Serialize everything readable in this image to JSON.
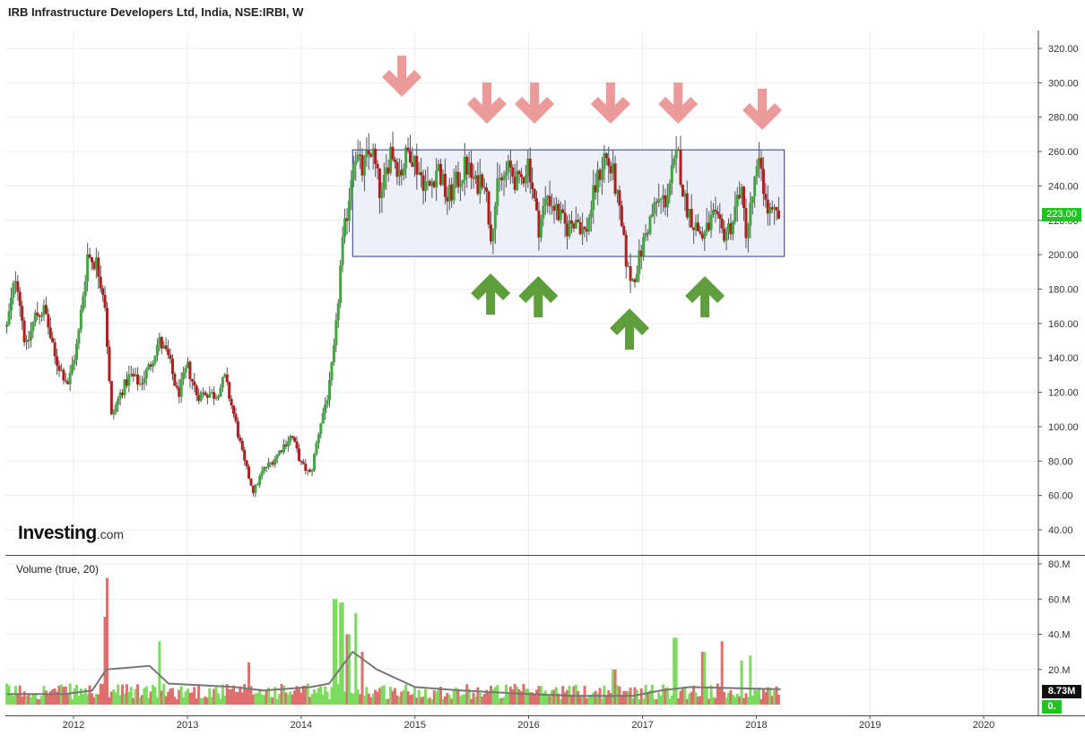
{
  "title": "IRB Infrastructure Developers Ltd, India, NSE:IRBI, W",
  "volume_label": "Volume (true, 20)",
  "logo": {
    "main": "Investing",
    "suffix": ".com"
  },
  "last_price_label": "223.00",
  "last_volume_label": "8.73M",
  "volume_ma_label": "0.",
  "colors": {
    "up": "#3ea83e",
    "down": "#b01e1e",
    "vol_up": "#7ddb5f",
    "vol_down": "#df6f6f",
    "arrow_down": "#ec9a9a",
    "arrow_up": "#5e9e3c",
    "range_box": "#eef0f9",
    "range_border": "#2a3a8a",
    "price_badge": "#22c322"
  },
  "chart_data": [
    {
      "type": "candlestick",
      "interval": "weekly",
      "y_axis": {
        "ticks": [
          "320.00",
          "300.00",
          "280.00",
          "260.00",
          "240.00",
          "220.00",
          "200.00",
          "180.00",
          "160.00",
          "140.00",
          "120.00",
          "100.00",
          "80.00",
          "60.00",
          "40.00"
        ],
        "range": [
          30,
          330
        ]
      },
      "x_axis": {
        "ticks": [
          "2012",
          "2013",
          "2014",
          "2015",
          "2016",
          "2017",
          "2018",
          "2019",
          "2020"
        ]
      },
      "anchors": [
        [
          "2011-06-01",
          158
        ],
        [
          "2011-07-01",
          190
        ],
        [
          "2011-08-01",
          145
        ],
        [
          "2011-09-01",
          165
        ],
        [
          "2011-10-01",
          168
        ],
        [
          "2011-11-01",
          140
        ],
        [
          "2011-12-15",
          125
        ],
        [
          "2012-01-15",
          150
        ],
        [
          "2012-02-15",
          200
        ],
        [
          "2012-03-15",
          195
        ],
        [
          "2012-04-10",
          175
        ],
        [
          "2012-05-01",
          105
        ],
        [
          "2012-06-01",
          120
        ],
        [
          "2012-07-01",
          130
        ],
        [
          "2012-08-01",
          125
        ],
        [
          "2012-09-01",
          135
        ],
        [
          "2012-10-01",
          150
        ],
        [
          "2012-11-01",
          140
        ],
        [
          "2012-12-01",
          118
        ],
        [
          "2013-01-01",
          135
        ],
        [
          "2013-02-01",
          118
        ],
        [
          "2013-03-01",
          120
        ],
        [
          "2013-04-01",
          118
        ],
        [
          "2013-05-01",
          128
        ],
        [
          "2013-06-01",
          105
        ],
        [
          "2013-07-01",
          80
        ],
        [
          "2013-08-01",
          62
        ],
        [
          "2013-09-01",
          75
        ],
        [
          "2013-10-01",
          80
        ],
        [
          "2013-11-01",
          88
        ],
        [
          "2013-12-01",
          95
        ],
        [
          "2014-01-01",
          78
        ],
        [
          "2014-02-01",
          72
        ],
        [
          "2014-03-01",
          100
        ],
        [
          "2014-04-01",
          122
        ],
        [
          "2014-04-20",
          150
        ],
        [
          "2014-05-10",
          200
        ],
        [
          "2014-06-01",
          230
        ],
        [
          "2014-06-20",
          262
        ],
        [
          "2014-07-15",
          248
        ],
        [
          "2014-08-15",
          262
        ],
        [
          "2014-09-15",
          232
        ],
        [
          "2014-10-15",
          262
        ],
        [
          "2014-11-15",
          248
        ],
        [
          "2014-12-15",
          262
        ],
        [
          "2015-01-15",
          248
        ],
        [
          "2015-02-15",
          238
        ],
        [
          "2015-03-15",
          252
        ],
        [
          "2015-04-15",
          232
        ],
        [
          "2015-05-15",
          242
        ],
        [
          "2015-06-15",
          252
        ],
        [
          "2015-07-15",
          240
        ],
        [
          "2015-08-10",
          248
        ],
        [
          "2015-09-01",
          212
        ],
        [
          "2015-09-25",
          240
        ],
        [
          "2015-11-01",
          250
        ],
        [
          "2015-12-01",
          240
        ],
        [
          "2016-01-01",
          255
        ],
        [
          "2016-02-01",
          215
        ],
        [
          "2016-03-01",
          235
        ],
        [
          "2016-04-01",
          225
        ],
        [
          "2016-05-01",
          215
        ],
        [
          "2016-06-01",
          222
        ],
        [
          "2016-07-01",
          212
        ],
        [
          "2016-08-01",
          238
        ],
        [
          "2016-09-01",
          258
        ],
        [
          "2016-10-01",
          245
        ],
        [
          "2016-11-15",
          190
        ],
        [
          "2016-12-01",
          185
        ],
        [
          "2016-12-25",
          200
        ],
        [
          "2017-01-15",
          215
        ],
        [
          "2017-02-15",
          230
        ],
        [
          "2017-03-15",
          232
        ],
        [
          "2017-04-10",
          250
        ],
        [
          "2017-04-25",
          258
        ],
        [
          "2017-05-15",
          232
        ],
        [
          "2017-06-15",
          218
        ],
        [
          "2017-07-15",
          210
        ],
        [
          "2017-08-15",
          222
        ],
        [
          "2017-09-15",
          212
        ],
        [
          "2017-10-15",
          218
        ],
        [
          "2017-11-10",
          240
        ],
        [
          "2017-12-01",
          212
        ],
        [
          "2017-12-25",
          240
        ],
        [
          "2018-01-15",
          255
        ],
        [
          "2018-02-01",
          228
        ],
        [
          "2018-02-20",
          222
        ],
        [
          "2018-03-20",
          223
        ]
      ],
      "range_box": {
        "from": "2014-06-15",
        "to": "2018-04-01",
        "high": 261,
        "low": 199
      },
      "resistance_arrows": [
        "2014-11-20",
        "2015-08-20",
        "2016-01-20",
        "2016-09-20",
        "2017-04-25",
        "2018-01-20"
      ],
      "support_arrows": [
        "2015-09-01",
        "2016-02-01",
        "2016-11-20",
        "2017-07-20"
      ],
      "last_close": 223.0
    },
    {
      "type": "bar",
      "series_label": "Volume (true, 20)",
      "y_axis": {
        "ticks": [
          "80.M",
          "60.M",
          "40.M",
          "20.M"
        ],
        "range": [
          0,
          80
        ]
      },
      "spikes": [
        [
          "2012-04-20",
          72
        ],
        [
          "2012-04-10",
          50
        ],
        [
          "2012-10-01",
          36
        ],
        [
          "2013-07-15",
          24
        ],
        [
          "2014-04-20",
          60
        ],
        [
          "2014-05-10",
          58
        ],
        [
          "2014-06-01",
          40
        ],
        [
          "2014-06-25",
          52
        ],
        [
          "2014-07-15",
          30
        ],
        [
          "2016-10-01",
          20
        ],
        [
          "2017-04-15",
          38
        ],
        [
          "2017-07-15",
          30
        ],
        [
          "2017-09-15",
          36
        ],
        [
          "2017-11-15",
          25
        ],
        [
          "2017-12-15",
          28
        ]
      ],
      "ma20_anchors": [
        [
          "2011-06-01",
          6
        ],
        [
          "2011-12-01",
          6
        ],
        [
          "2012-03-01",
          8
        ],
        [
          "2012-04-15",
          20
        ],
        [
          "2012-09-01",
          22
        ],
        [
          "2012-11-01",
          12
        ],
        [
          "2013-06-01",
          10
        ],
        [
          "2013-09-01",
          8
        ],
        [
          "2014-02-01",
          10
        ],
        [
          "2014-04-01",
          12
        ],
        [
          "2014-06-15",
          30
        ],
        [
          "2014-09-01",
          20
        ],
        [
          "2015-01-01",
          10
        ],
        [
          "2015-06-01",
          8
        ],
        [
          "2016-01-01",
          6
        ],
        [
          "2016-06-01",
          5
        ],
        [
          "2016-12-01",
          5
        ],
        [
          "2017-03-01",
          8
        ],
        [
          "2017-06-01",
          10
        ],
        [
          "2018-01-01",
          9
        ],
        [
          "2018-03-20",
          8.73
        ]
      ],
      "last_value": 8.73
    }
  ]
}
